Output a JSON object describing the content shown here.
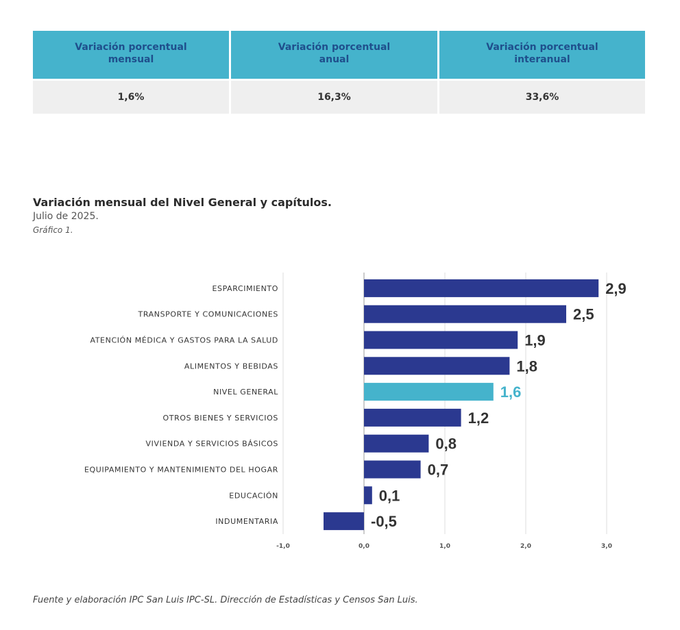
{
  "summary": {
    "headers": [
      "Variación porcentual\nmensual",
      "Variación porcentual\nanual",
      "Variación porcentual\ninteranual"
    ],
    "values": [
      "1,6%",
      "16,3%",
      "33,6%"
    ]
  },
  "chart_header": {
    "title": "Variación mensual del Nivel General y capítulos.",
    "subtitle": "Julio de 2025.",
    "note": "Gráfico 1."
  },
  "footer": "Fuente y elaboración IPC San Luis IPC-SL. Dirección de Estadísticas y Censos San Luis.",
  "colors": {
    "bar": "#2b3990",
    "highlight": "#45b3cc",
    "label": "#333333"
  },
  "chart_data": {
    "type": "bar",
    "orientation": "horizontal",
    "title": "Variación mensual del Nivel General y capítulos.",
    "categories": [
      "ESPARCIMIENTO",
      "TRANSPORTE Y COMUNICACIONES",
      "ATENCIÓN MÉDICA Y GASTOS PARA LA SALUD",
      "ALIMENTOS Y BEBIDAS",
      "NIVEL GENERAL",
      "OTROS BIENES Y SERVICIOS",
      "VIVIENDA Y SERVICIOS BÁSICOS",
      "EQUIPAMIENTO Y MANTENIMIENTO DEL HOGAR",
      "EDUCACIÓN",
      "INDUMENTARIA"
    ],
    "values": [
      2.9,
      2.5,
      1.9,
      1.8,
      1.6,
      1.2,
      0.8,
      0.7,
      0.1,
      -0.5
    ],
    "value_labels": [
      "2,9",
      "2,5",
      "1,9",
      "1,8",
      "1,6",
      "1,2",
      "0,8",
      "0,7",
      "0,1",
      "-0,5"
    ],
    "highlight_category": "NIVEL GENERAL",
    "xlim": [
      -1.0,
      3.0
    ],
    "xticks": [
      -1.0,
      0.0,
      1.0,
      2.0,
      3.0
    ],
    "xtick_labels": [
      "-1,0",
      "0,0",
      "1,0",
      "2,0",
      "3,0"
    ],
    "grid": true
  }
}
